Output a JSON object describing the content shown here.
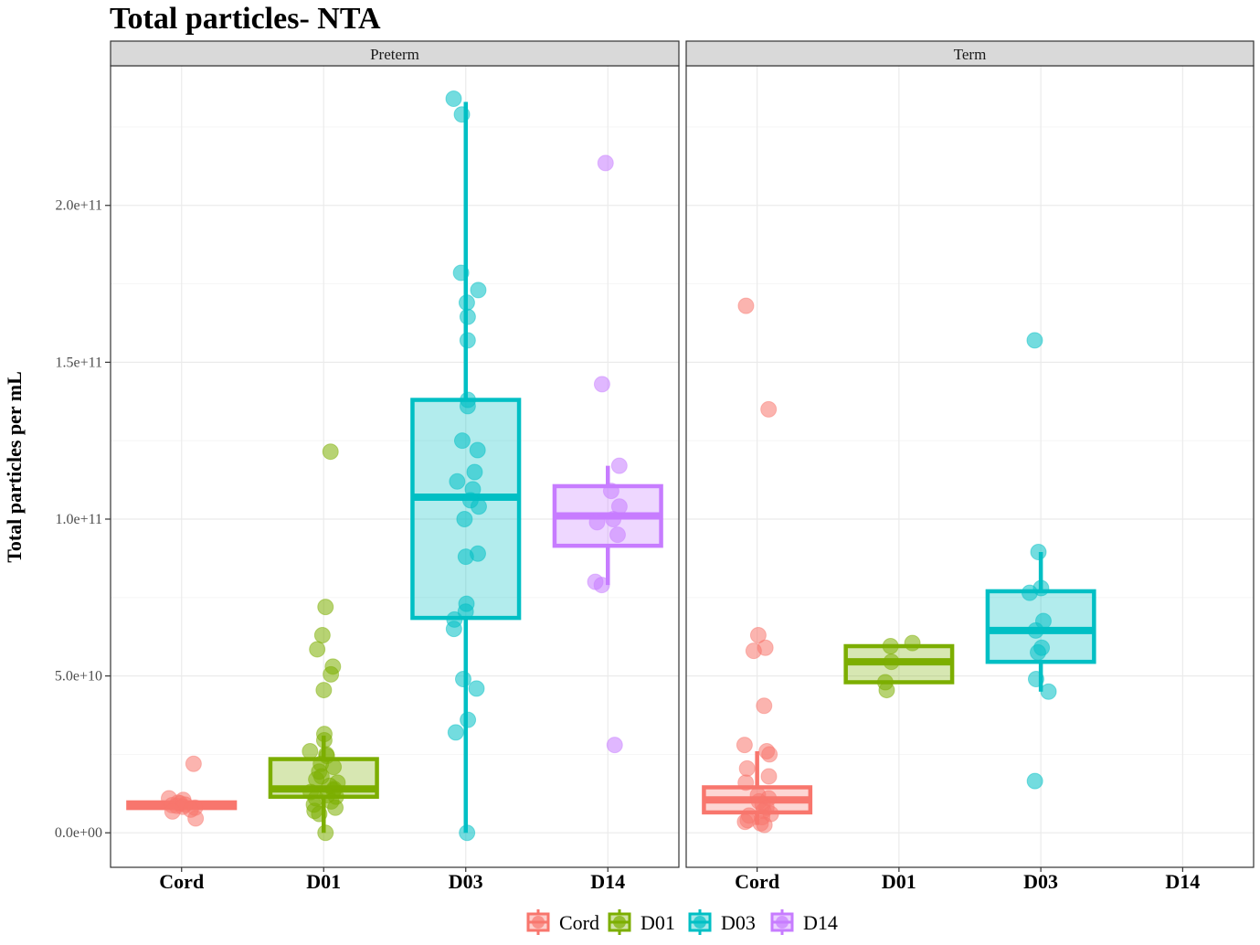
{
  "chart_data": {
    "type": "box",
    "title": "Total particles- NTA",
    "ylabel": "Total particles per mL",
    "xlabel": "",
    "ylim": [
      -11000000000.0,
      244500000000.0
    ],
    "y_ticks": [
      0,
      50000000000.0,
      100000000000.0,
      150000000000.0,
      200000000000.0
    ],
    "y_tick_labels": [
      "0.0e+00",
      "5.0e+10",
      "1.0e+11",
      "1.5e+11",
      "2.0e+11"
    ],
    "categories": [
      "Cord",
      "D01",
      "D03",
      "D14"
    ],
    "grid": true,
    "legend_position": "bottom",
    "colors": {
      "Cord": "#F8766D",
      "D01": "#7CAE00",
      "D03": "#00BFC4",
      "D14": "#C77CFF"
    },
    "legend": [
      {
        "label": "Cord",
        "color": "#F8766D"
      },
      {
        "label": "D01",
        "color": "#7CAE00"
      },
      {
        "label": "D03",
        "color": "#00BFC4"
      },
      {
        "label": "D14",
        "color": "#C77CFF"
      }
    ],
    "panels": [
      {
        "label": "Preterm",
        "groups": [
          {
            "name": "Cord",
            "q1": 7900000000.0,
            "median": 8800000000.0,
            "q3": 9700000000.0,
            "whisker_low": 7900000000.0,
            "whisker_high": 9700000000.0,
            "points": [
              22000000000.0,
              11000000000.0,
              10500000000.0,
              9600000000.0,
              9400000000.0,
              9000000000.0,
              8800000000.0,
              8600000000.0,
              8300000000.0,
              8000000000.0,
              7400000000.0,
              6800000000.0,
              4600000000.0
            ]
          },
          {
            "name": "D01",
            "q1": 11500000000.0,
            "median": 14000000000.0,
            "q3": 23500000000.0,
            "whisker_low": 0,
            "whisker_high": 31000000000.0,
            "points": [
              121500000000.0,
              72000000000.0,
              63000000000.0,
              58500000000.0,
              53000000000.0,
              50500000000.0,
              45500000000.0,
              31500000000.0,
              29500000000.0,
              26000000000.0,
              25000000000.0,
              24500000000.0,
              22000000000.0,
              21000000000.0,
              19500000000.0,
              18000000000.0,
              17000000000.0,
              16000000000.0,
              15000000000.0,
              14000000000.0,
              13500000000.0,
              13000000000.0,
              12000000000.0,
              11500000000.0,
              11000000000.0,
              10000000000.0,
              9000000000.0,
              8000000000.0,
              7000000000.0,
              6000000000.0,
              0
            ]
          },
          {
            "name": "D03",
            "q1": 68500000000.0,
            "median": 107000000000.0,
            "q3": 138000000000.0,
            "whisker_low": 0,
            "whisker_high": 233000000000.0,
            "points": [
              234000000000.0,
              229000000000.0,
              178500000000.0,
              173000000000.0,
              169000000000.0,
              164500000000.0,
              157000000000.0,
              138000000000.0,
              136000000000.0,
              125000000000.0,
              122000000000.0,
              115000000000.0,
              112000000000.0,
              109500000000.0,
              106000000000.0,
              104000000000.0,
              100000000000.0,
              89000000000.0,
              88000000000.0,
              73000000000.0,
              70500000000.0,
              68000000000.0,
              65000000000.0,
              49000000000.0,
              46000000000.0,
              36000000000.0,
              32000000000.0,
              0
            ]
          },
          {
            "name": "D14",
            "q1": 91500000000.0,
            "median": 101000000000.0,
            "q3": 110500000000.0,
            "whisker_low": 79000000000.0,
            "whisker_high": 117000000000.0,
            "points": [
              213500000000.0,
              143000000000.0,
              117000000000.0,
              109000000000.0,
              104000000000.0,
              100000000000.0,
              99000000000.0,
              95000000000.0,
              80000000000.0,
              79000000000.0,
              28000000000.0
            ]
          }
        ]
      },
      {
        "label": "Term",
        "groups": [
          {
            "name": "Cord",
            "q1": 6500000000.0,
            "median": 10500000000.0,
            "q3": 14500000000.0,
            "whisker_low": 2500000000.0,
            "whisker_high": 26000000000.0,
            "points": [
              168000000000.0,
              135000000000.0,
              63000000000.0,
              59000000000.0,
              58000000000.0,
              40500000000.0,
              28000000000.0,
              26000000000.0,
              25000000000.0,
              20500000000.0,
              18000000000.0,
              16000000000.0,
              12000000000.0,
              11000000000.0,
              10000000000.0,
              9000000000.0,
              8000000000.0,
              7000000000.0,
              6000000000.0,
              5500000000.0,
              5000000000.0,
              4000000000.0,
              3500000000.0,
              3000000000.0,
              2500000000.0
            ]
          },
          {
            "name": "D01",
            "q1": 48000000000.0,
            "median": 54500000000.0,
            "q3": 59500000000.0,
            "whisker_low": 48000000000.0,
            "whisker_high": 59500000000.0,
            "points": [
              60500000000.0,
              59500000000.0,
              54500000000.0,
              48000000000.0,
              45500000000.0
            ]
          },
          {
            "name": "D03",
            "q1": 54500000000.0,
            "median": 64500000000.0,
            "q3": 77000000000.0,
            "whisker_low": 45000000000.0,
            "whisker_high": 89500000000.0,
            "points": [
              157000000000.0,
              89500000000.0,
              78000000000.0,
              76500000000.0,
              67500000000.0,
              64500000000.0,
              59000000000.0,
              57500000000.0,
              49000000000.0,
              45000000000.0,
              16500000000.0
            ]
          },
          {
            "name": "D14",
            "points": []
          }
        ]
      }
    ]
  }
}
